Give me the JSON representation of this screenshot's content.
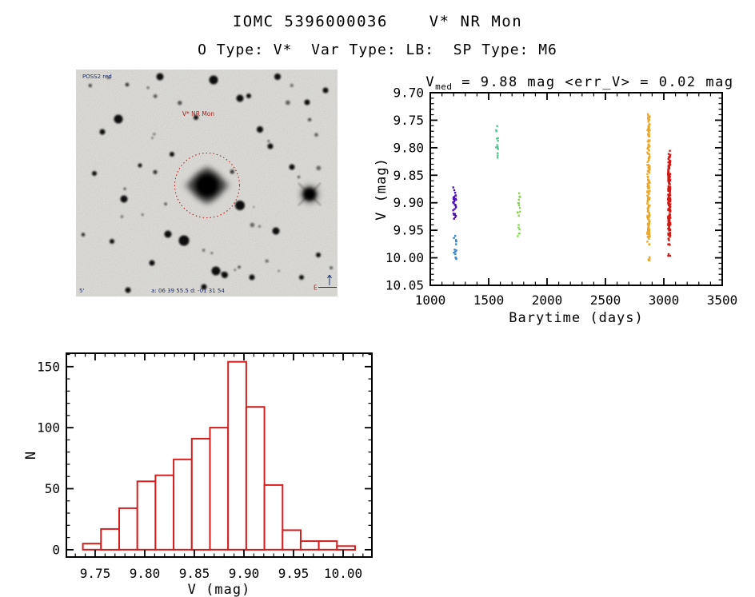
{
  "page": {
    "title": "IOMC 5396000036    V* NR Mon",
    "subtitle": "O Type: V*  Var Type: LB:  SP Type: M6"
  },
  "finder_chart": {
    "target_label": "V* NR Mon",
    "survey_label": "POSS2 red",
    "scale_label": "5'",
    "coords_label": "a: 06 39 55.5  d: -01 31 54",
    "east_label": "E",
    "circle_color": "#bb2222"
  },
  "chart_data": [
    {
      "id": "lightcurve",
      "type": "scatter",
      "title_parts": {
        "base": "V",
        "sub": "med",
        "rest": " = 9.88 mag <err_V> = 0.02 mag"
      },
      "title_text": "V_med = 9.88 mag <err_V> = 0.02 mag",
      "xlabel": "Barytime (days)",
      "ylabel": "V (mag)",
      "xlim": [
        1000,
        3500
      ],
      "ylim": [
        9.7,
        10.05
      ],
      "y_axis_inverted_magnitude": true,
      "x_major_ticks": [
        1000,
        1500,
        2000,
        2500,
        3000,
        3500
      ],
      "x_minor_step": 100,
      "y_major_ticks": [
        9.7,
        9.75,
        9.8,
        9.85,
        9.9,
        9.95,
        10.0,
        10.05
      ],
      "y_minor_step": 0.01,
      "grid": false,
      "legend": "none",
      "clusters": [
        {
          "name": "epoch-1a",
          "color": "#4a10b4",
          "t_center": 1208,
          "t_spread": 26,
          "segments": [
            {
              "v_min": 9.872,
              "v_max": 9.882,
              "n": 3
            },
            {
              "v_min": 9.884,
              "v_max": 9.92,
              "n": 20
            },
            {
              "v_min": 9.918,
              "v_max": 9.93,
              "n": 6
            }
          ]
        },
        {
          "name": "epoch-1b",
          "color": "#3a87c9",
          "t_center": 1213,
          "t_spread": 22,
          "segments": [
            {
              "v_min": 9.958,
              "v_max": 9.976,
              "n": 7
            },
            {
              "v_min": 9.976,
              "v_max": 9.994,
              "n": 5
            },
            {
              "v_min": 9.996,
              "v_max": 10.004,
              "n": 3
            }
          ]
        },
        {
          "name": "epoch-2",
          "color": "#52c795",
          "t_center": 1572,
          "t_spread": 16,
          "segments": [
            {
              "v_min": 9.757,
              "v_max": 9.762,
              "n": 1
            },
            {
              "v_min": 9.768,
              "v_max": 9.775,
              "n": 2
            },
            {
              "v_min": 9.778,
              "v_max": 9.812,
              "n": 10
            },
            {
              "v_min": 9.813,
              "v_max": 9.819,
              "n": 2
            }
          ]
        },
        {
          "name": "epoch-3",
          "color": "#84d84f",
          "t_center": 1759,
          "t_spread": 22,
          "segments": [
            {
              "v_min": 9.879,
              "v_max": 9.895,
              "n": 4
            },
            {
              "v_min": 9.898,
              "v_max": 9.912,
              "n": 4
            },
            {
              "v_min": 9.914,
              "v_max": 9.935,
              "n": 4
            },
            {
              "v_min": 9.936,
              "v_max": 9.961,
              "n": 6
            }
          ]
        },
        {
          "name": "epoch-4",
          "color": "#eba828",
          "t_center": 2869,
          "t_spread": 22,
          "segments": [
            {
              "v_min": 9.738,
              "v_max": 9.752,
              "n": 10
            },
            {
              "v_min": 9.752,
              "v_max": 9.905,
              "n": 110
            },
            {
              "v_min": 9.905,
              "v_max": 9.962,
              "n": 55
            },
            {
              "v_min": 9.962,
              "v_max": 9.98,
              "n": 6
            },
            {
              "v_min": 9.996,
              "v_max": 10.005,
              "n": 5
            }
          ]
        },
        {
          "name": "epoch-5",
          "color": "#d21a15",
          "t_center": 3046,
          "t_spread": 20,
          "segments": [
            {
              "v_min": 9.804,
              "v_max": 9.822,
              "n": 8
            },
            {
              "v_min": 9.822,
              "v_max": 9.843,
              "n": 18
            },
            {
              "v_min": 9.843,
              "v_max": 9.906,
              "n": 85
            },
            {
              "v_min": 9.906,
              "v_max": 9.962,
              "n": 75
            },
            {
              "v_min": 9.962,
              "v_max": 9.986,
              "n": 6
            },
            {
              "v_min": 9.99,
              "v_max": 9.999,
              "n": 3
            }
          ]
        }
      ]
    },
    {
      "id": "histogram",
      "type": "bar",
      "style": "outline-histogram",
      "bar_color": "#d41f1f",
      "xlabel": "V (mag)",
      "ylabel": "N",
      "bin_start": 9.7376,
      "bin_width": 0.0183,
      "counts": [
        5,
        17,
        34,
        56,
        61,
        74,
        91,
        100,
        154,
        117,
        53,
        16,
        7,
        7,
        3
      ],
      "x_major_ticks": [
        9.75,
        9.8,
        9.85,
        9.9,
        9.95,
        10.0
      ],
      "x_minor_step": 0.01,
      "y_major_ticks": [
        0,
        50,
        100,
        150
      ],
      "y_minor_step": 10,
      "xlim": [
        9.721,
        10.029
      ],
      "ylim": [
        -6,
        161
      ],
      "grid": false,
      "legend": "none"
    }
  ]
}
